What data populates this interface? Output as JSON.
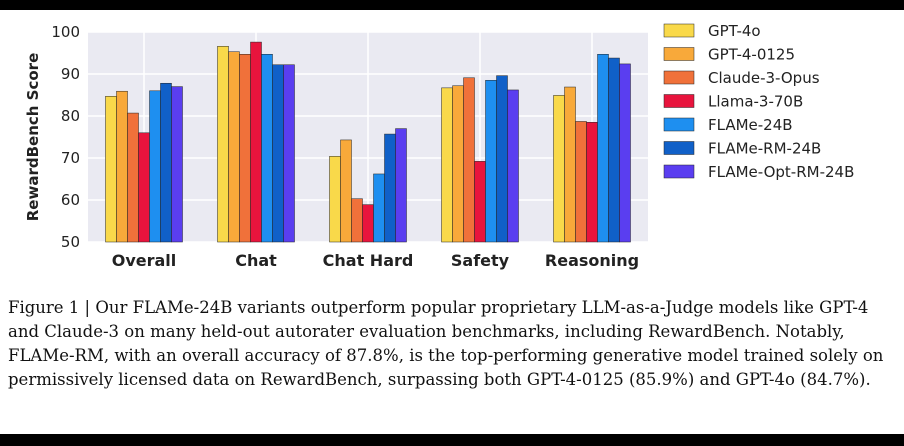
{
  "chart_data": {
    "type": "bar",
    "categories": [
      "Overall",
      "Chat",
      "Chat Hard",
      "Safety",
      "Reasoning"
    ],
    "series": [
      {
        "name": "GPT-4o",
        "color": "#f9d94a",
        "values": [
          84.7,
          96.6,
          70.4,
          86.7,
          84.9
        ]
      },
      {
        "name": "GPT-4-0125",
        "color": "#f8a93a",
        "values": [
          85.9,
          95.3,
          74.3,
          87.2,
          86.9
        ]
      },
      {
        "name": "Claude-3-Opus",
        "color": "#f0713a",
        "values": [
          80.7,
          94.7,
          60.3,
          89.1,
          78.7
        ]
      },
      {
        "name": "Llama-3-70B",
        "color": "#e8143d",
        "values": [
          76.0,
          97.6,
          58.9,
          69.2,
          78.5
        ]
      },
      {
        "name": "FLAMe-24B",
        "color": "#1e8ff0",
        "values": [
          86.0,
          94.7,
          66.2,
          88.5,
          94.7
        ]
      },
      {
        "name": "FLAMe-RM-24B",
        "color": "#1060c8",
        "values": [
          87.8,
          92.2,
          75.7,
          89.6,
          93.8
        ]
      },
      {
        "name": "FLAMe-Opt-RM-24B",
        "color": "#5a3ef0",
        "values": [
          87.0,
          92.2,
          77.0,
          86.2,
          92.4
        ]
      }
    ],
    "title": "",
    "xlabel": "",
    "ylabel": "RewardBench Score",
    "ylim": [
      50,
      100
    ],
    "yticks": [
      "50",
      "60",
      "70",
      "80",
      "90",
      "100"
    ],
    "grid": true,
    "legend_position": "right",
    "plot_background": "#eaeaf2"
  },
  "caption": "Figure 1 | Our FLAMe-24B variants outperform popular proprietary LLM-as-a-Judge models like GPT-4 and Claude-3 on many held-out autorater evaluation benchmarks, including RewardBench. Notably, FLAMe-RM, with an overall accuracy of 87.8%, is the top-performing generative model trained solely on permissively licensed data on RewardBench, surpassing both GPT-4-0125 (85.9%) and GPT-4o (84.7%)."
}
